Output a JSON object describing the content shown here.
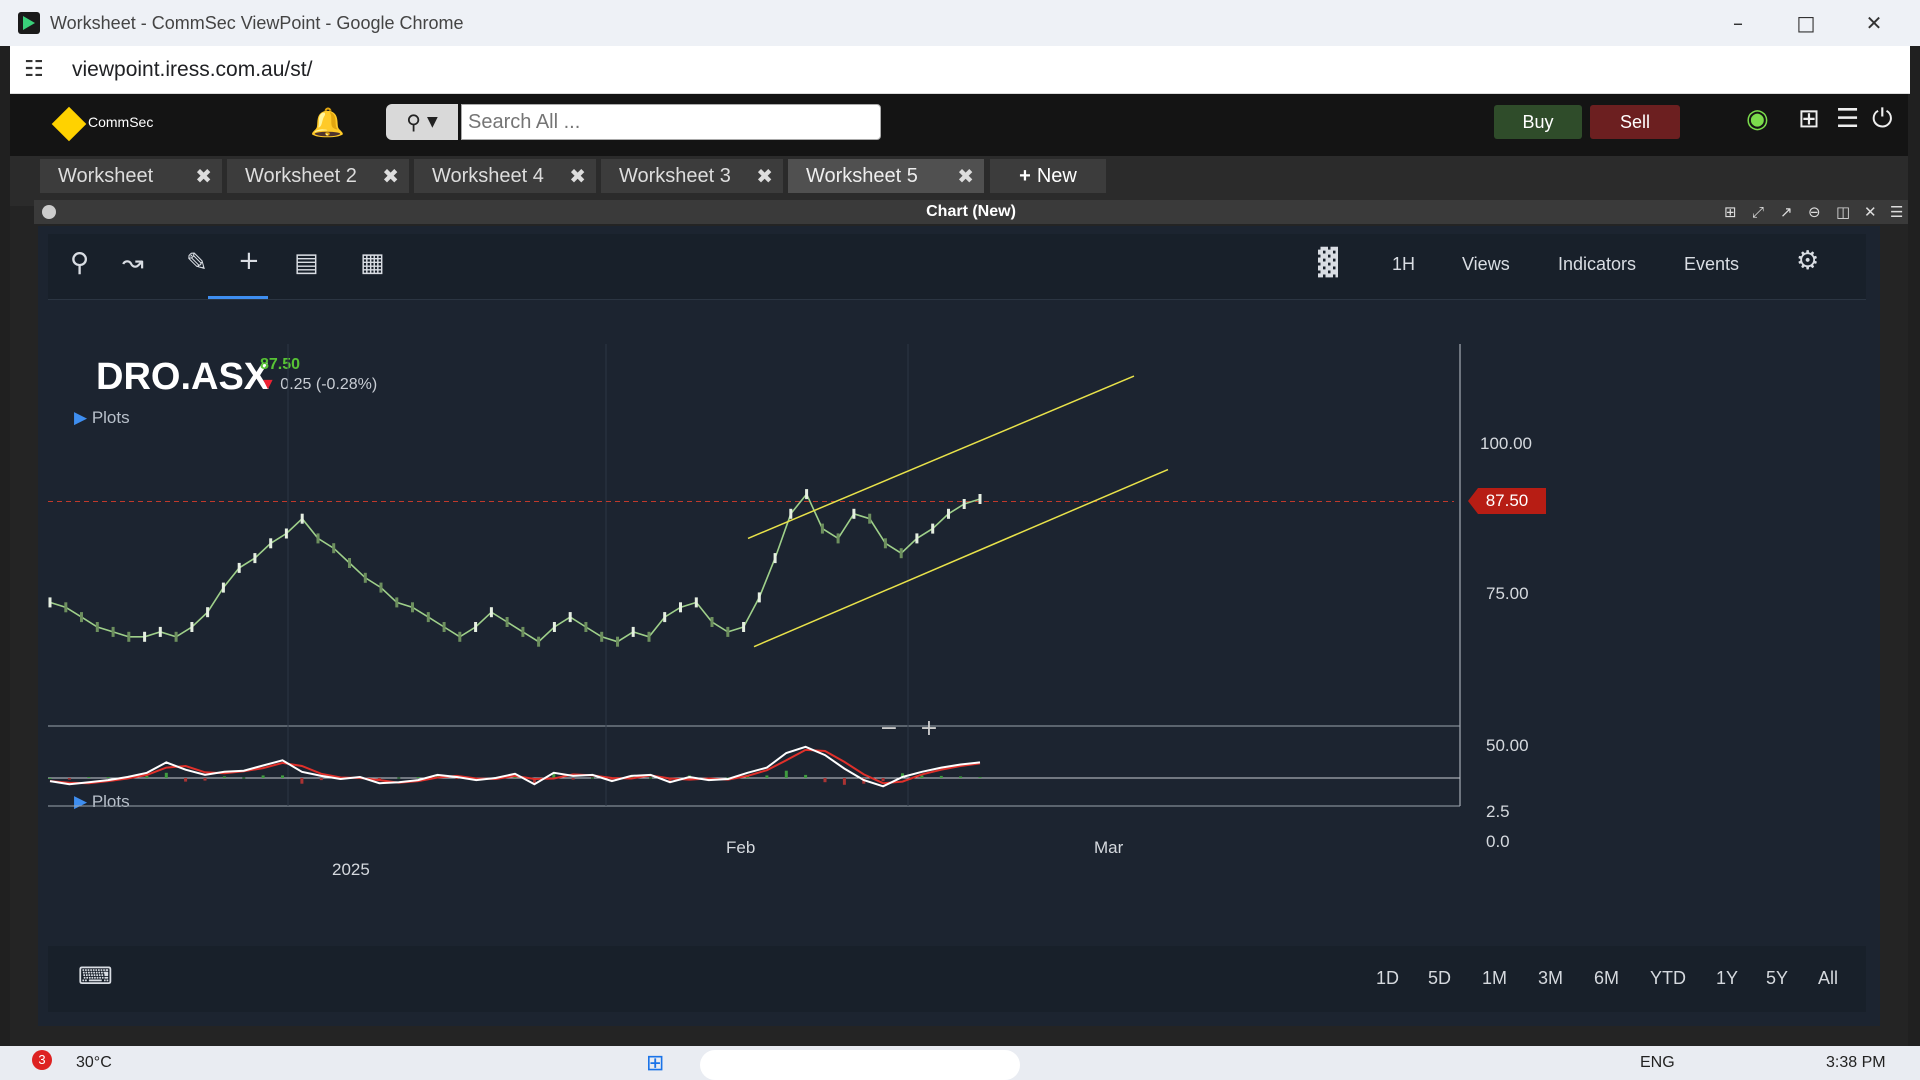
{
  "browser": {
    "window_title": "Worksheet - CommSec ViewPoint - Google Chrome",
    "url": "viewpoint.iress.com.au/st/"
  },
  "app": {
    "brand": "CommSec",
    "search_placeholder": "Search All ...",
    "buy_label": "Buy",
    "sell_label": "Sell",
    "tabs": [
      {
        "label": "Worksheet"
      },
      {
        "label": "Worksheet 2"
      },
      {
        "label": "Worksheet 4"
      },
      {
        "label": "Worksheet 3"
      },
      {
        "label": "Worksheet 5",
        "active": true
      }
    ],
    "new_tab_label": "New",
    "panel_title": "Chart (New)"
  },
  "toolbar": {
    "interval": "1H",
    "views": "Views",
    "indicators": "Indicators",
    "events": "Events"
  },
  "quote": {
    "symbol": "DRO.ASX",
    "price": "87.50",
    "change": "0.25 (-0.28%)"
  },
  "plots_label": "Plots",
  "chart_data": {
    "type": "line",
    "price_axis_ticks": [
      "100.00",
      "75.00",
      "50.00"
    ],
    "last_price_label": "87.50",
    "indicator_axis_ticks": [
      "2.5",
      "0.0"
    ],
    "x_ticks": [
      "2025",
      "Feb",
      "Mar"
    ],
    "price_series": [
      67,
      66,
      64,
      62,
      61,
      60,
      60,
      61,
      60,
      62,
      65,
      70,
      74,
      76,
      79,
      81,
      84,
      80,
      78,
      75,
      72,
      70,
      67,
      66,
      64,
      62,
      60,
      62,
      65,
      63,
      61,
      59,
      62,
      64,
      62,
      60,
      59,
      61,
      60,
      64,
      66,
      67,
      63,
      61,
      62,
      68,
      76,
      85,
      89,
      82,
      80,
      85,
      84,
      79,
      77,
      80,
      82,
      85,
      87,
      88
    ],
    "indicator_series": [
      -0.3,
      -0.6,
      -0.4,
      -0.2,
      0.1,
      0.5,
      1.5,
      0.8,
      0.3,
      0.6,
      0.7,
      1.2,
      1.7,
      0.6,
      0.2,
      -0.1,
      0.1,
      -0.5,
      -0.4,
      -0.2,
      0.3,
      0.1,
      -0.2,
      0.0,
      0.4,
      -0.6,
      0.5,
      0.2,
      0.3,
      -0.3,
      0.2,
      0.3,
      -0.4,
      0.1,
      -0.2,
      -0.1,
      0.5,
      1.0,
      2.4,
      3.0,
      2.2,
      0.9,
      -0.2,
      -0.8,
      0.1,
      0.6,
      1.0,
      1.3,
      1.5
    ],
    "channel": "ascending"
  },
  "ranges": [
    "1D",
    "5D",
    "1M",
    "3M",
    "6M",
    "YTD",
    "1Y",
    "5Y",
    "All"
  ],
  "taskbar": {
    "weather": "30°C",
    "language": "ENG",
    "time": "3:38 PM",
    "badge": "3"
  }
}
